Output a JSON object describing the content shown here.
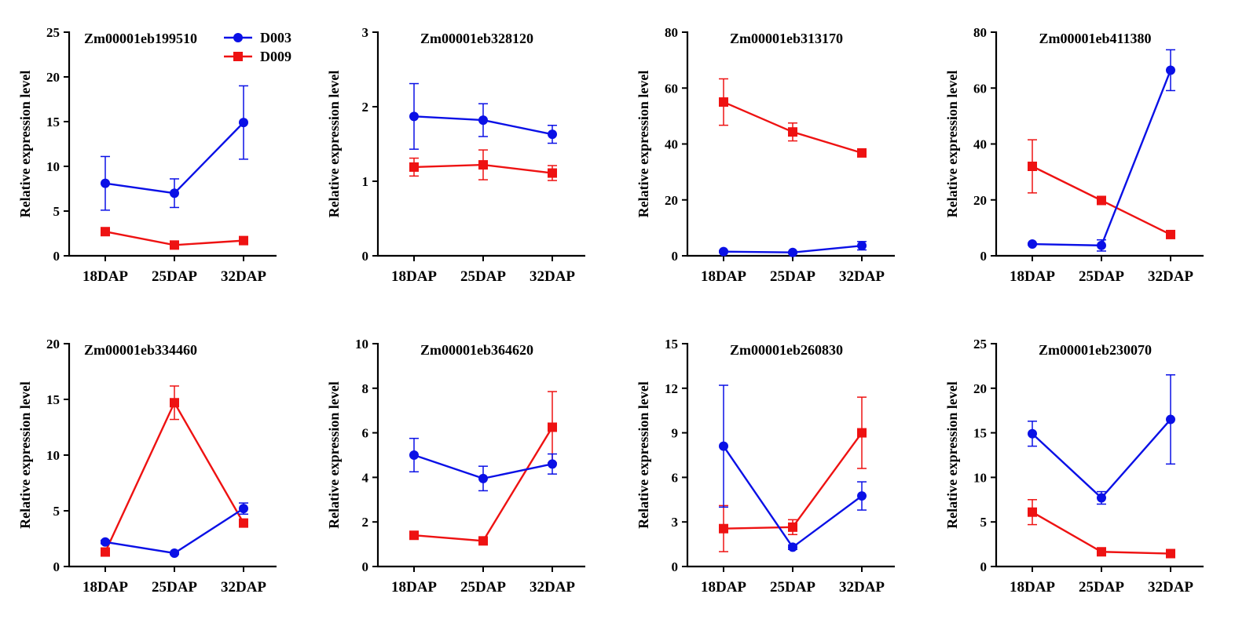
{
  "series_colors": {
    "D003": "#0a10e6",
    "D009": "#ee1212"
  },
  "legend": [
    {
      "name": "D003",
      "marker": "circle"
    },
    {
      "name": "D009",
      "marker": "square"
    }
  ],
  "chart_data": [
    {
      "type": "line",
      "title": "Zm00001eb199510",
      "xlabel": "",
      "ylabel": "Relative expression level",
      "categories": [
        "18DAP",
        "25DAP",
        "32DAP"
      ],
      "ylim": [
        0,
        25
      ],
      "yticks": [
        0,
        5,
        10,
        15,
        20,
        25
      ],
      "series": [
        {
          "name": "D003",
          "values": [
            8.1,
            7.0,
            14.9
          ],
          "errors": [
            3.0,
            1.6,
            4.1
          ]
        },
        {
          "name": "D009",
          "values": [
            2.7,
            1.2,
            1.7
          ],
          "errors": [
            0.3,
            0.2,
            0.2
          ]
        }
      ]
    },
    {
      "type": "line",
      "title": "Zm00001eb328120",
      "xlabel": "",
      "ylabel": "Relative expression level",
      "categories": [
        "18DAP",
        "25DAP",
        "32DAP"
      ],
      "ylim": [
        0,
        3
      ],
      "yticks": [
        0,
        1,
        2,
        3
      ],
      "series": [
        {
          "name": "D003",
          "values": [
            1.87,
            1.82,
            1.63
          ],
          "errors": [
            0.44,
            0.22,
            0.12
          ]
        },
        {
          "name": "D009",
          "values": [
            1.19,
            1.22,
            1.11
          ],
          "errors": [
            0.12,
            0.2,
            0.1
          ]
        }
      ]
    },
    {
      "type": "line",
      "title": "Zm00001eb313170",
      "xlabel": "",
      "ylabel": "Relative expression level",
      "categories": [
        "18DAP",
        "25DAP",
        "32DAP"
      ],
      "ylim": [
        0,
        80
      ],
      "yticks": [
        0,
        20,
        40,
        60,
        80
      ],
      "series": [
        {
          "name": "D003",
          "values": [
            1.5,
            1.2,
            3.6
          ],
          "errors": [
            0.3,
            0.3,
            1.5
          ]
        },
        {
          "name": "D009",
          "values": [
            55,
            44.3,
            36.8
          ],
          "errors": [
            8.3,
            3.2,
            0.8
          ]
        }
      ]
    },
    {
      "type": "line",
      "title": "Zm00001eb411380",
      "xlabel": "",
      "ylabel": "Relative expression level",
      "categories": [
        "18DAP",
        "25DAP",
        "32DAP"
      ],
      "ylim": [
        0,
        80
      ],
      "yticks": [
        0,
        20,
        40,
        60,
        80
      ],
      "series": [
        {
          "name": "D003",
          "values": [
            4.2,
            3.7,
            66.4
          ],
          "errors": [
            0.3,
            2.0,
            7.3
          ]
        },
        {
          "name": "D009",
          "values": [
            32,
            19.8,
            7.6
          ],
          "errors": [
            9.5,
            0.6,
            0.8
          ]
        }
      ]
    },
    {
      "type": "line",
      "title": "Zm00001eb334460",
      "xlabel": "",
      "ylabel": "Relative expression level",
      "categories": [
        "18DAP",
        "25DAP",
        "32DAP"
      ],
      "ylim": [
        0,
        20
      ],
      "yticks": [
        0,
        5,
        10,
        15,
        20
      ],
      "series": [
        {
          "name": "D003",
          "values": [
            2.2,
            1.2,
            5.2
          ],
          "errors": [
            0.15,
            0.1,
            0.5
          ]
        },
        {
          "name": "D009",
          "values": [
            1.3,
            14.7,
            3.9
          ],
          "errors": [
            0.15,
            1.5,
            0.3
          ]
        }
      ]
    },
    {
      "type": "line",
      "title": "Zm00001eb364620",
      "xlabel": "",
      "ylabel": "Relative expression level",
      "categories": [
        "18DAP",
        "25DAP",
        "32DAP"
      ],
      "ylim": [
        0,
        10
      ],
      "yticks": [
        0,
        2,
        4,
        6,
        8,
        10
      ],
      "series": [
        {
          "name": "D003",
          "values": [
            5.0,
            3.95,
            4.6
          ],
          "errors": [
            0.75,
            0.55,
            0.45
          ]
        },
        {
          "name": "D009",
          "values": [
            1.4,
            1.15,
            6.25
          ],
          "errors": [
            0.08,
            0.08,
            1.6
          ]
        }
      ]
    },
    {
      "type": "line",
      "title": "Zm00001eb260830",
      "xlabel": "",
      "ylabel": "Relative expression level",
      "categories": [
        "18DAP",
        "25DAP",
        "32DAP"
      ],
      "ylim": [
        0,
        15
      ],
      "yticks": [
        0,
        3,
        6,
        9,
        12,
        15
      ],
      "series": [
        {
          "name": "D003",
          "values": [
            8.1,
            1.3,
            4.75
          ],
          "errors": [
            4.1,
            0.15,
            0.95
          ]
        },
        {
          "name": "D009",
          "values": [
            2.55,
            2.65,
            9.0
          ],
          "errors": [
            1.55,
            0.5,
            2.4
          ]
        }
      ]
    },
    {
      "type": "line",
      "title": "Zm00001eb230070",
      "xlabel": "",
      "ylabel": "Relative expression level",
      "categories": [
        "18DAP",
        "25DAP",
        "32DAP"
      ],
      "ylim": [
        0,
        25
      ],
      "yticks": [
        0,
        5,
        10,
        15,
        20,
        25
      ],
      "series": [
        {
          "name": "D003",
          "values": [
            14.9,
            7.7,
            16.5
          ],
          "errors": [
            1.4,
            0.7,
            5.0
          ]
        },
        {
          "name": "D009",
          "values": [
            6.1,
            1.65,
            1.45
          ],
          "errors": [
            1.4,
            0.15,
            0.15
          ]
        }
      ]
    }
  ]
}
